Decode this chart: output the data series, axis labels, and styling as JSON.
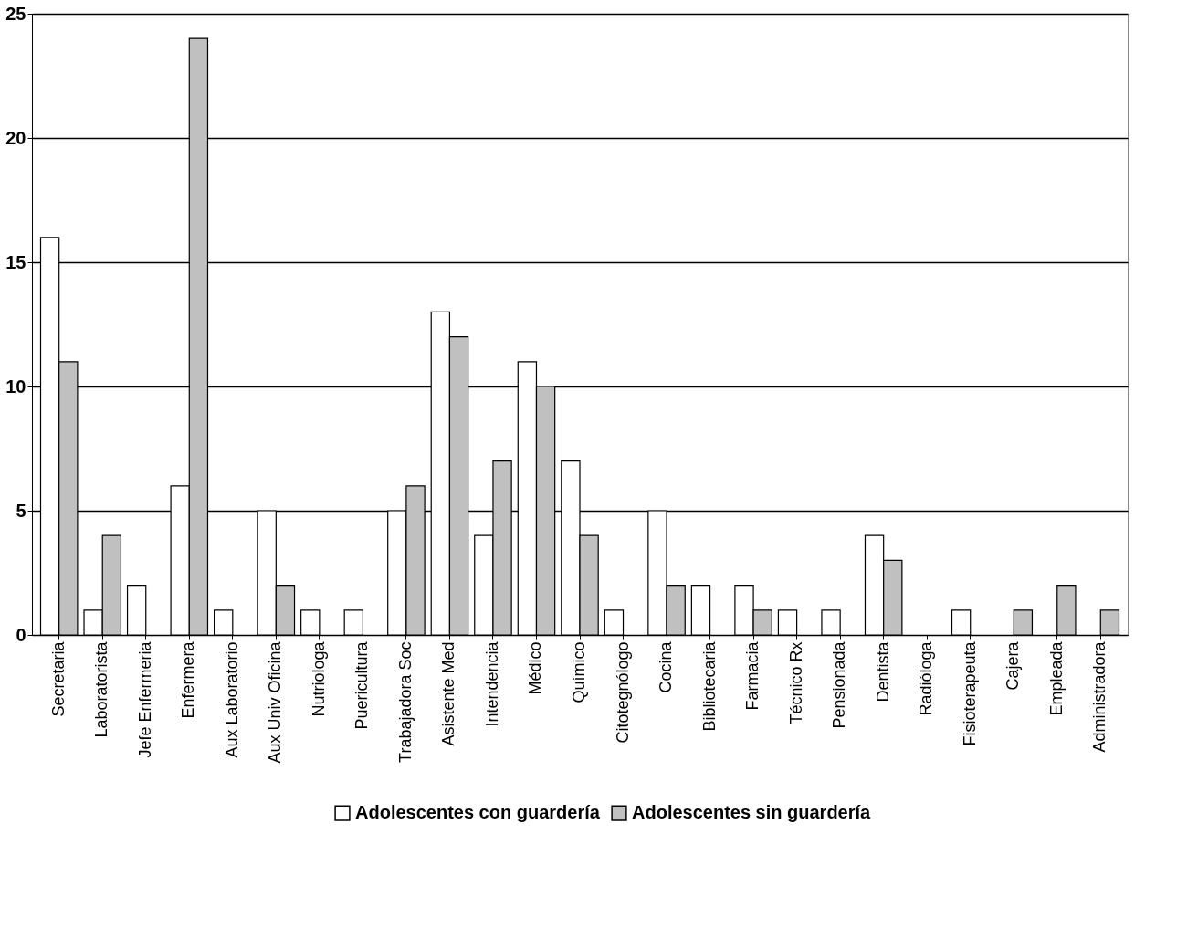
{
  "chart_data": {
    "type": "bar",
    "categories": [
      "Secretaria",
      "Laboratorista",
      "Jefe Enfermeria",
      "Enfermera",
      "Aux Laboratorio",
      "Aux Univ Oficina",
      "Nutriologa",
      "Puericultura",
      "Trabajadora Soc",
      "Asistente Med",
      "Intendencia",
      "Médico",
      "Químico",
      "Citotegnólogo",
      "Cocina",
      "Bibliotecaria",
      "Farmacia",
      "Técnico Rx",
      "Pensionada",
      "Dentista",
      "Radióloga",
      "Fisioterapeuta",
      "Cajera",
      "Empleada",
      "Administradora"
    ],
    "series": [
      {
        "name": "Adolescentes con guardería",
        "color": "#ffffff",
        "values": [
          16,
          1,
          2,
          6,
          1,
          5,
          1,
          1,
          5,
          13,
          4,
          11,
          7,
          1,
          5,
          2,
          2,
          1,
          1,
          4,
          0,
          1,
          0,
          0,
          0
        ]
      },
      {
        "name": "Adolescentes sin guardería",
        "color": "#c0c0c0",
        "values": [
          11,
          4,
          0,
          24,
          0,
          2,
          0,
          0,
          6,
          12,
          7,
          10,
          4,
          0,
          2,
          0,
          1,
          0,
          0,
          3,
          0,
          0,
          1,
          2,
          1
        ]
      }
    ],
    "ylim": [
      0,
      25
    ],
    "yticks": [
      0,
      5,
      10,
      15,
      20,
      25
    ],
    "grid": "y",
    "legend": "bottom"
  }
}
